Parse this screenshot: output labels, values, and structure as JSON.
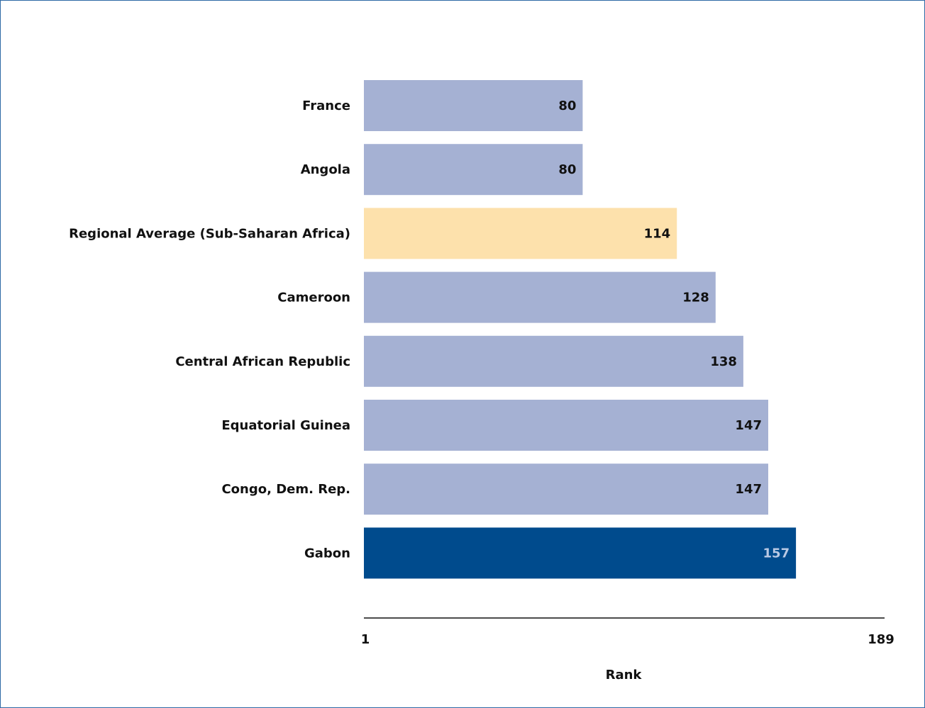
{
  "chart_data": {
    "type": "bar",
    "orientation": "horizontal",
    "title": "",
    "xlabel": "Rank",
    "ylabel": "",
    "xlim": [
      1,
      189
    ],
    "x_ticks": [
      "1",
      "189"
    ],
    "grid": false,
    "categories": [
      "France",
      "Angola",
      "Regional Average (Sub-Saharan Africa)",
      "Cameroon",
      "Central African Republic",
      "Equatorial Guinea",
      "Congo, Dem. Rep.",
      "Gabon"
    ],
    "values": [
      80,
      80,
      114,
      128,
      138,
      147,
      147,
      157
    ],
    "value_labels": [
      "80",
      "80",
      "114",
      "128",
      "138",
      "147",
      "147",
      "157"
    ],
    "bar_colors": [
      "#a5b1d3",
      "#a5b1d3",
      "#fde1ac",
      "#a5b1d3",
      "#a5b1d3",
      "#a5b1d3",
      "#a5b1d3",
      "#004b8d"
    ],
    "value_label_colors": [
      "#111111",
      "#111111",
      "#111111",
      "#111111",
      "#111111",
      "#111111",
      "#111111",
      "#b9c9e4"
    ]
  },
  "colors": {
    "frame_border": "#2e6aa6",
    "axis_line": "#111111"
  }
}
